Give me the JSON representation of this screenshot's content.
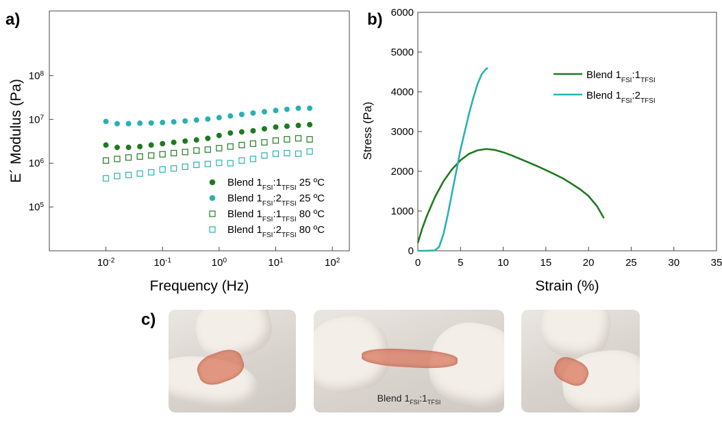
{
  "panel_labels": {
    "a": "a)",
    "b": "b)",
    "c": "c)"
  },
  "photo_caption": {
    "base": "Blend 1",
    "sub1": "FSI",
    "mid": ":1",
    "sub2": "TFSI"
  },
  "chart_data": [
    {
      "type": "scatter",
      "panel": "a",
      "xlabel": "Frequency (Hz)",
      "ylabel": "E´ Modulus (Pa)",
      "xscale": "log",
      "yscale": "log",
      "xlim": [
        0.001,
        200
      ],
      "ylim": [
        10000,
        3000000000
      ],
      "xticks": [
        {
          "v": 0.01,
          "base": "10",
          "exp": "-2"
        },
        {
          "v": 0.1,
          "base": "10",
          "exp": "-1"
        },
        {
          "v": 1,
          "base": "10",
          "exp": "0"
        },
        {
          "v": 10,
          "base": "10",
          "exp": "1"
        },
        {
          "v": 100,
          "base": "10",
          "exp": "2"
        }
      ],
      "yticks": [
        {
          "v": 100000,
          "base": "10",
          "exp": "5"
        },
        {
          "v": 1000000,
          "base": "10",
          "exp": "6"
        },
        {
          "v": 10000000,
          "base": "10",
          "exp": "7"
        },
        {
          "v": 100000000,
          "base": "10",
          "exp": "8"
        }
      ],
      "x": [
        0.01,
        0.0158,
        0.0251,
        0.0398,
        0.0631,
        0.1,
        0.158,
        0.251,
        0.398,
        0.631,
        1,
        1.58,
        2.51,
        3.98,
        6.31,
        10,
        15.8,
        25.1,
        39.8
      ],
      "series": [
        {
          "name": "Blend 1FSI:1TFSI 25 ºC",
          "label": {
            "base": "Blend 1",
            "sub1": "FSI",
            "mid": ":1",
            "sub2": "TFSI",
            "tail": " 25 ºC"
          },
          "marker": "filled",
          "color": "#1e7a1e",
          "values": [
            2600000,
            2300000,
            2300000,
            2400000,
            2600000,
            2800000,
            3000000,
            3200000,
            3400000,
            3700000,
            4300000,
            4900000,
            5200000,
            5500000,
            6100000,
            6700000,
            7000000,
            7300000,
            7600000
          ]
        },
        {
          "name": "Blend 1FSI:2TFSI 25 ºC",
          "label": {
            "base": "Blend 1",
            "sub1": "FSI",
            "mid": ":2",
            "sub2": "TFSI",
            "tail": " 25 ºC"
          },
          "marker": "filled",
          "color": "#2ab0b0",
          "values": [
            9000000,
            8000000,
            8000000,
            8200000,
            8300000,
            8500000,
            8800000,
            9200000,
            9700000,
            10200000,
            11000000,
            12000000,
            13000000,
            14000000,
            15000000,
            16000000,
            17000000,
            18000000,
            18000000
          ]
        },
        {
          "name": "Blend 1FSI:1TFSI 80 ºC",
          "label": {
            "base": "Blend 1",
            "sub1": "FSI",
            "mid": ":1",
            "sub2": "TFSI",
            "tail": " 80 ºC"
          },
          "marker": "open-square",
          "color": "#1e7a1e",
          "values": [
            1150000,
            1250000,
            1350000,
            1420000,
            1500000,
            1600000,
            1700000,
            1800000,
            1950000,
            2050000,
            2200000,
            2400000,
            2600000,
            2800000,
            3000000,
            3300000,
            3500000,
            3700000,
            3500000
          ]
        },
        {
          "name": "Blend 1FSI:2TFSI 80 ºC",
          "label": {
            "base": "Blend 1",
            "sub1": "FSI",
            "mid": ":2",
            "sub2": "TFSI",
            "tail": " 80 ºC"
          },
          "marker": "open-square",
          "color": "#2ab0b0",
          "values": [
            450000,
            510000,
            540000,
            580000,
            620000,
            720000,
            760000,
            830000,
            920000,
            960000,
            1020000,
            1000000,
            1150000,
            1250000,
            1500000,
            1650000,
            1700000,
            1650000,
            1850000
          ]
        }
      ],
      "legend_position": "bottom-right",
      "grid": false
    },
    {
      "type": "line",
      "panel": "b",
      "xlabel": "Strain (%)",
      "ylabel": "Stress (Pa)",
      "xlim": [
        0,
        35
      ],
      "ylim": [
        0,
        6000
      ],
      "xticks": [
        0,
        5,
        10,
        15,
        20,
        25,
        30,
        35
      ],
      "yticks": [
        0,
        1000,
        2000,
        3000,
        4000,
        5000,
        6000
      ],
      "series": [
        {
          "name": "Blend 1FSI:1TFSI",
          "label": {
            "base": "Blend 1",
            "sub1": "FSI",
            "mid": ":1",
            "sub2": "TFSI"
          },
          "color": "#1e7a1e",
          "points": [
            [
              0,
              200
            ],
            [
              0.5,
              550
            ],
            [
              1,
              850
            ],
            [
              2,
              1350
            ],
            [
              3,
              1750
            ],
            [
              4,
              2050
            ],
            [
              5,
              2280
            ],
            [
              6,
              2440
            ],
            [
              7,
              2530
            ],
            [
              8,
              2560
            ],
            [
              9,
              2540
            ],
            [
              10,
              2480
            ],
            [
              11,
              2400
            ],
            [
              12,
              2310
            ],
            [
              13,
              2220
            ],
            [
              14,
              2130
            ],
            [
              15,
              2030
            ],
            [
              16,
              1930
            ],
            [
              17,
              1820
            ],
            [
              18,
              1690
            ],
            [
              19,
              1550
            ],
            [
              20,
              1380
            ],
            [
              21,
              1120
            ],
            [
              21.8,
              820
            ]
          ]
        },
        {
          "name": "Blend 1FSI:2TFSI",
          "label": {
            "base": "Blend 1",
            "sub1": "FSI",
            "mid": ":2",
            "sub2": "TFSI"
          },
          "color": "#2ab0b0",
          "points": [
            [
              0,
              0
            ],
            [
              1,
              0
            ],
            [
              2,
              10
            ],
            [
              2.5,
              100
            ],
            [
              3,
              420
            ],
            [
              3.5,
              900
            ],
            [
              4,
              1450
            ],
            [
              4.5,
              2000
            ],
            [
              5,
              2550
            ],
            [
              5.5,
              3000
            ],
            [
              6,
              3450
            ],
            [
              6.5,
              3850
            ],
            [
              7,
              4200
            ],
            [
              7.5,
              4450
            ],
            [
              8,
              4580
            ],
            [
              8.2,
              4600
            ]
          ]
        }
      ],
      "legend_position": "top-right",
      "grid": false
    }
  ]
}
